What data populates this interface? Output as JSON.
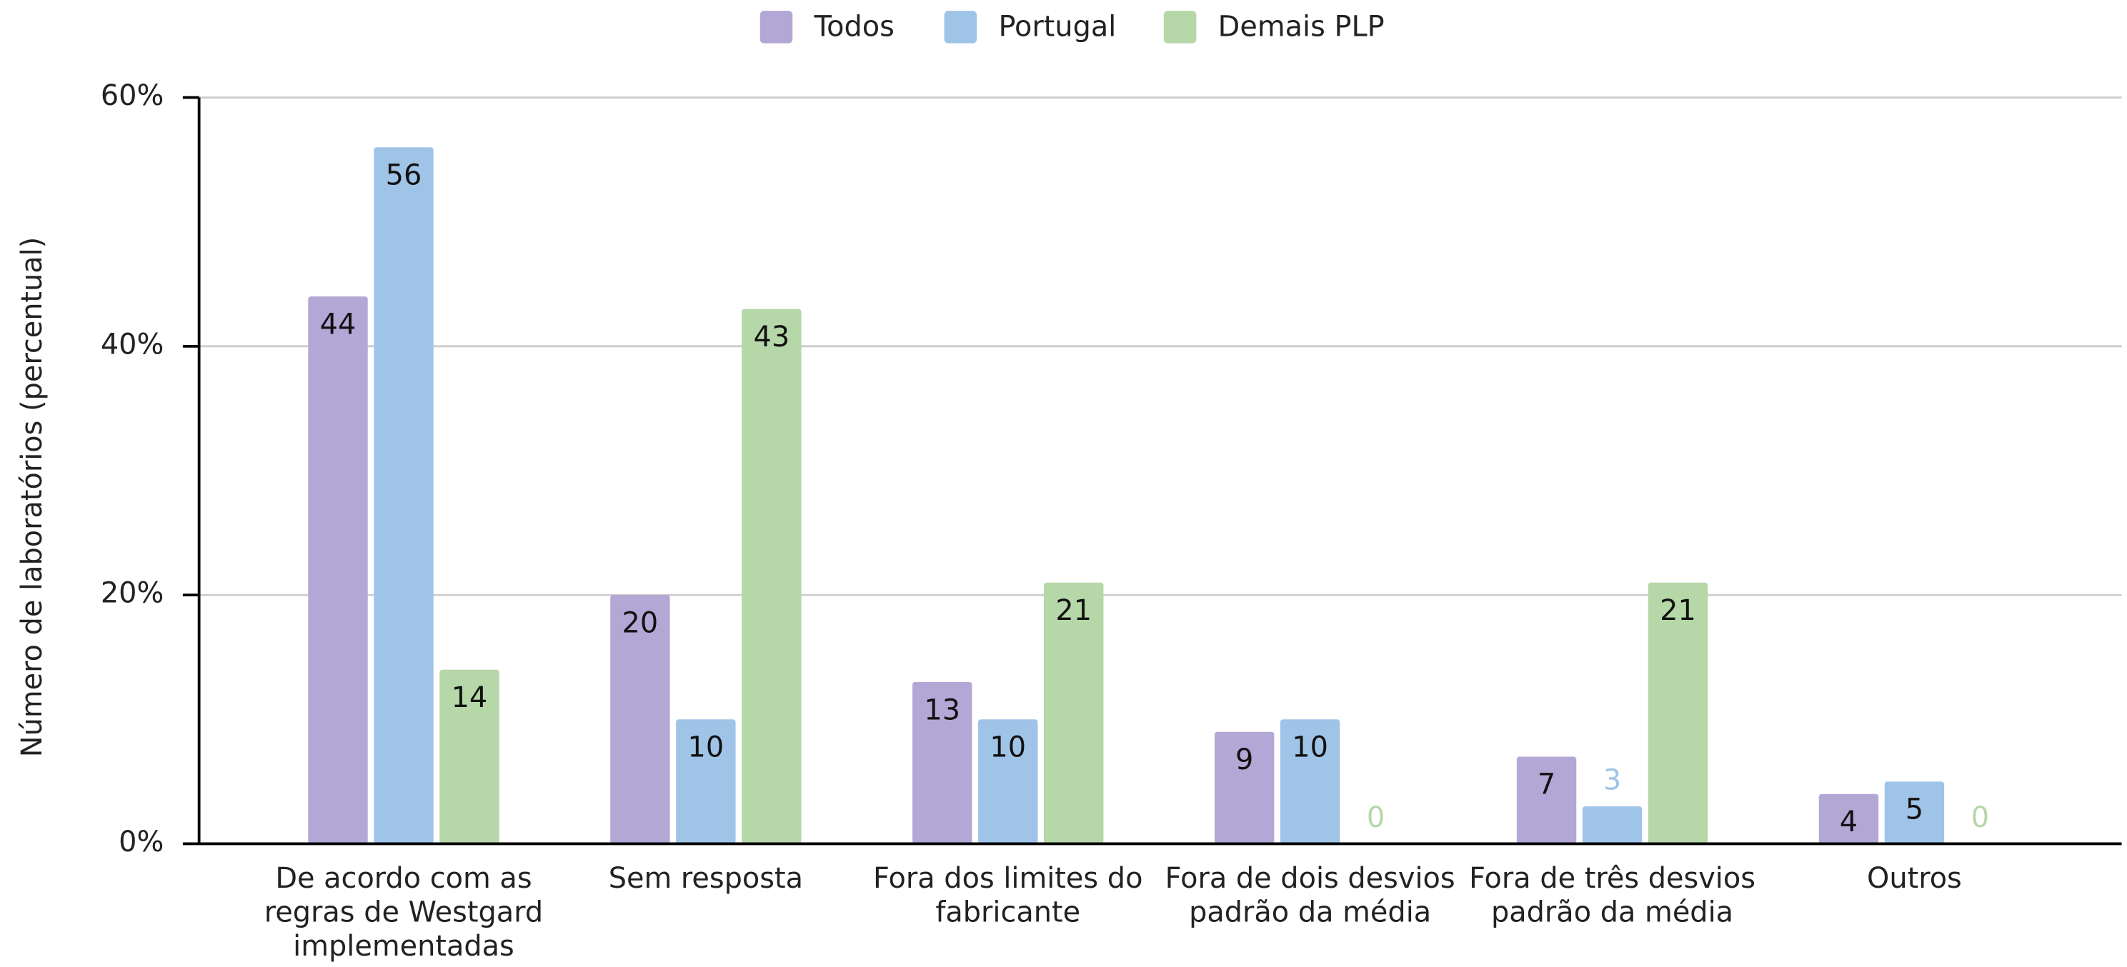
{
  "chart_data": {
    "type": "bar",
    "y_axis_label": "Número de laboratórios (percentual)",
    "categories": [
      [
        "De acordo com as",
        "regras de Westgard",
        "implementadas"
      ],
      [
        "Sem resposta"
      ],
      [
        "Fora dos limites do",
        "fabricante"
      ],
      [
        "Fora de dois desvios",
        "padrão da média"
      ],
      [
        "Fora de três desvios",
        "padrão da média"
      ],
      [
        "Outros"
      ]
    ],
    "series": [
      {
        "name": "Todos",
        "color": "#b3a7d6",
        "values": [
          44,
          20,
          13,
          9,
          7,
          4
        ]
      },
      {
        "name": "Portugal",
        "color": "#a0c4e8",
        "values": [
          56,
          10,
          10,
          10,
          3,
          5
        ]
      },
      {
        "name": "Demais PLP",
        "color": "#b6d7a8",
        "values": [
          14,
          43,
          21,
          0,
          21,
          0
        ]
      }
    ],
    "ylim": [
      0,
      60
    ],
    "yticks": [
      {
        "value": 0,
        "label": "0%"
      },
      {
        "value": 20,
        "label": "20%"
      },
      {
        "value": 40,
        "label": "40%"
      },
      {
        "value": 60,
        "label": "60%"
      }
    ],
    "grid": true,
    "legend": "top"
  }
}
